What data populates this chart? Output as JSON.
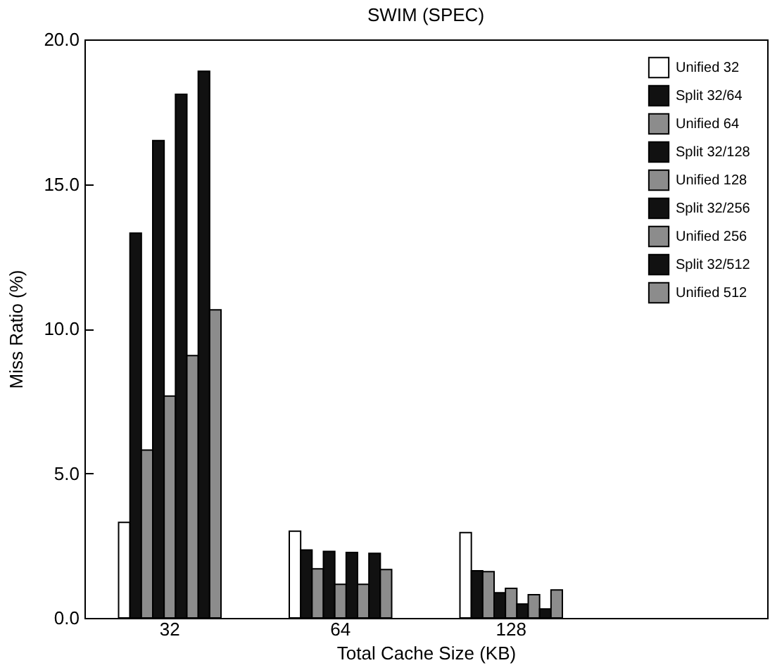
{
  "chart_data": {
    "type": "bar",
    "title": "SWIM (SPEC)",
    "xlabel": "Total Cache Size (KB)",
    "ylabel": "Miss Ratio (%)",
    "categories": [
      "32",
      "64",
      "128",
      null
    ],
    "ylim": [
      0,
      20
    ],
    "yticks": [
      {
        "value": 0,
        "label": "0.0"
      },
      {
        "value": 5,
        "label": "5.0"
      },
      {
        "value": 10,
        "label": "10.0"
      },
      {
        "value": 15,
        "label": "15.0"
      },
      {
        "value": 20,
        "label": "20.0"
      }
    ],
    "legend": "top right",
    "series": [
      {
        "name": "Unified 32",
        "color": "#ffffff",
        "values": [
          3.3,
          3.0,
          2.95,
          null
        ]
      },
      {
        "name": "Split 32/64",
        "color": "#111111",
        "values": [
          13.3,
          2.35,
          1.63,
          null
        ]
      },
      {
        "name": "Unified 64",
        "color": "#8c8c8c",
        "values": [
          5.8,
          1.7,
          1.6,
          null
        ]
      },
      {
        "name": "Split 32/128",
        "color": "#111111",
        "values": [
          16.5,
          2.3,
          0.87,
          null
        ]
      },
      {
        "name": "Unified 128",
        "color": "#8c8c8c",
        "values": [
          7.67,
          1.16,
          1.02,
          null
        ]
      },
      {
        "name": "Split 32/256",
        "color": "#111111",
        "values": [
          18.1,
          2.26,
          0.48,
          null
        ]
      },
      {
        "name": "Unified 256",
        "color": "#8c8c8c",
        "values": [
          9.07,
          1.16,
          0.8,
          null
        ]
      },
      {
        "name": "Split 32/512",
        "color": "#111111",
        "values": [
          18.9,
          2.23,
          0.31,
          null
        ]
      },
      {
        "name": "Unified 512",
        "color": "#8c8c8c",
        "values": [
          10.65,
          1.67,
          0.97,
          null
        ]
      }
    ]
  }
}
